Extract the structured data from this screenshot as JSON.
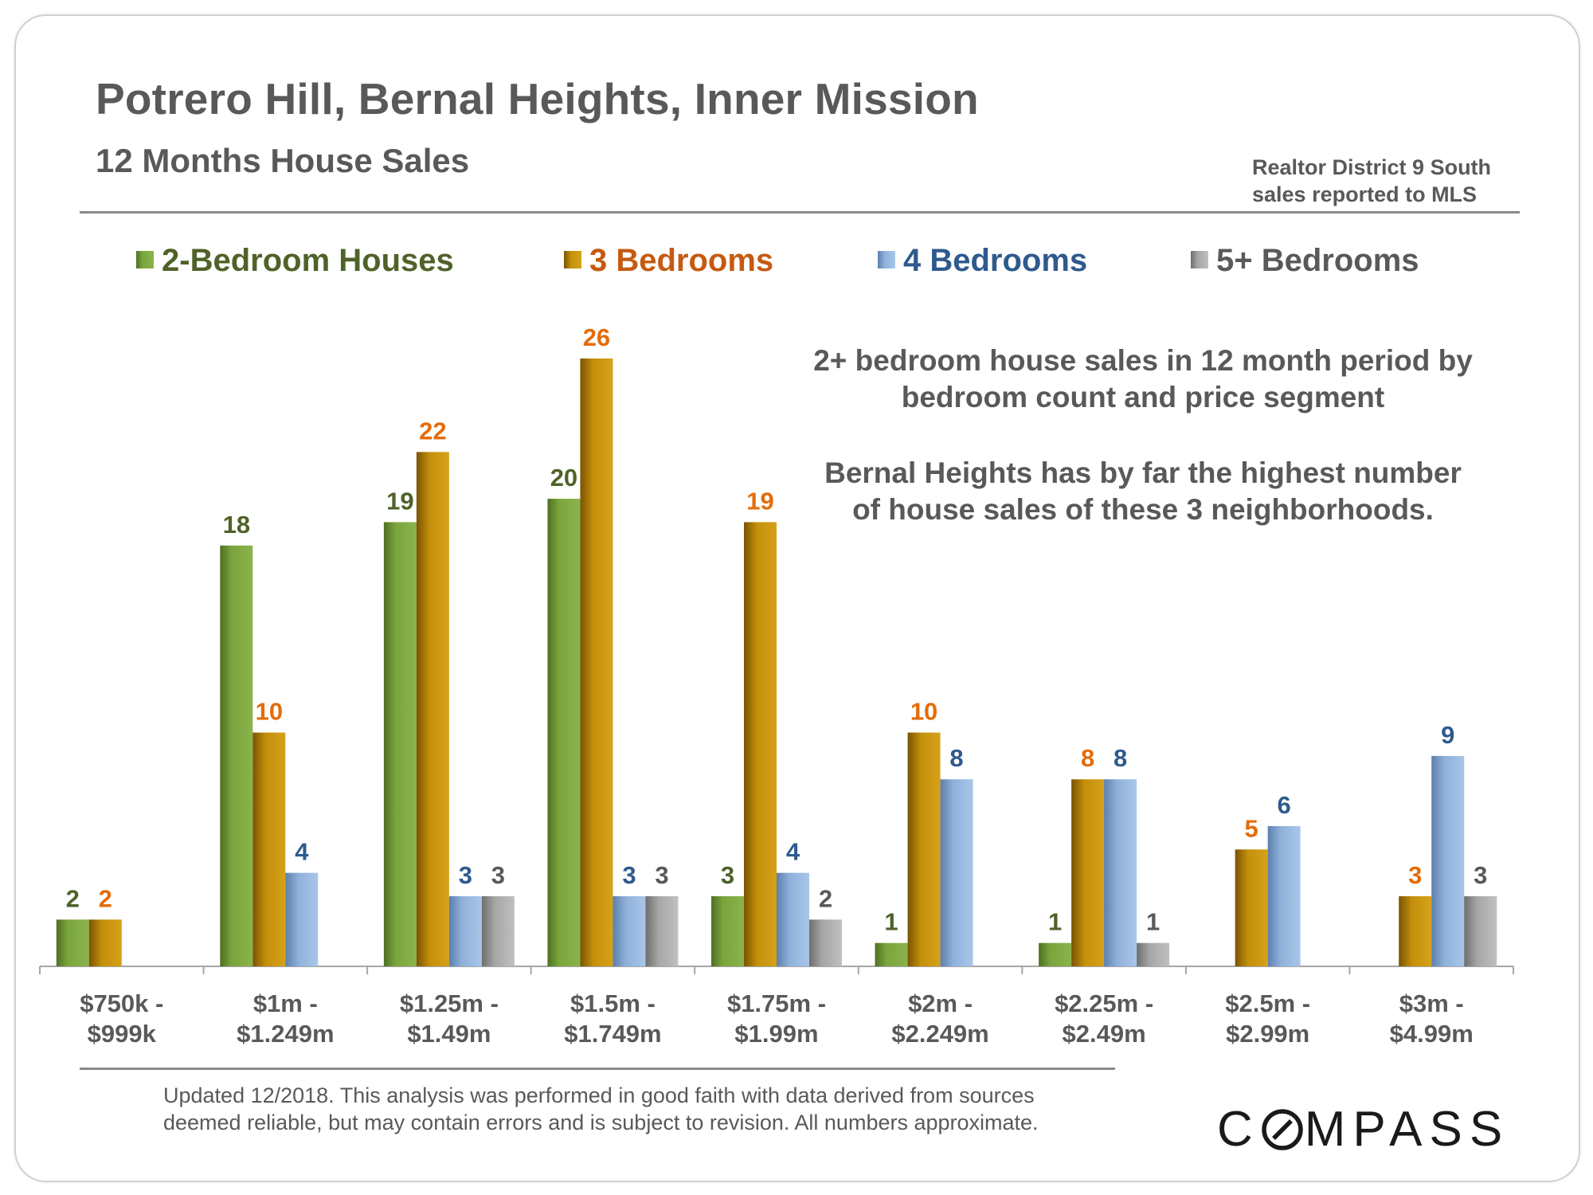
{
  "header": {
    "title": "Potrero Hill, Bernal Heights, Inner Mission",
    "subtitle": "12 Months House Sales",
    "source_line1": "Realtor District 9 South",
    "source_line2": "sales reported to MLS"
  },
  "footer": {
    "line1": "Updated 12/2018. This analysis was performed in good faith with data derived from sources",
    "line2": "deemed reliable, but may contain errors and is subject to revision. All numbers approximate.",
    "logo_left": "C",
    "logo_right": "MPASS"
  },
  "colors": {
    "axis": "#a6a6a6",
    "text": "#595959"
  },
  "chart_data": {
    "type": "bar",
    "title": "12 Months House Sales",
    "xlabel": "",
    "ylabel": "",
    "ylim": [
      0,
      26
    ],
    "grid": false,
    "legend_position": "top",
    "categories": [
      [
        "$750k -",
        "$999k"
      ],
      [
        "$1m -",
        "$1.249m"
      ],
      [
        "$1.25m -",
        "$1.49m"
      ],
      [
        "$1.5m -",
        "$1.749m"
      ],
      [
        "$1.75m -",
        "$1.99m"
      ],
      [
        "$2m -",
        "$2.249m"
      ],
      [
        "$2.25m -",
        "$2.49m"
      ],
      [
        "$2.5m -",
        "$2.99m"
      ],
      [
        "$3m -",
        "$4.99m"
      ]
    ],
    "series": [
      {
        "name": "2-Bedroom Houses",
        "color": "#77a03a",
        "label_color": "#4f6228",
        "values": [
          2,
          18,
          19,
          20,
          3,
          1,
          1,
          null,
          null
        ]
      },
      {
        "name": "3 Bedrooms",
        "color": "#c08a08",
        "label_color": "#e46c0a",
        "legend_color": "#c55a11",
        "values": [
          2,
          10,
          22,
          26,
          19,
          10,
          8,
          5,
          3
        ]
      },
      {
        "name": "4 Bedrooms",
        "color": "#8eb0d8",
        "label_color": "#2e5a8e",
        "values": [
          null,
          4,
          3,
          3,
          4,
          8,
          8,
          6,
          9
        ]
      },
      {
        "name": "5+ Bedrooms",
        "color": "#a8a8a8",
        "label_color": "#595959",
        "values": [
          null,
          null,
          3,
          3,
          2,
          null,
          1,
          null,
          3
        ]
      }
    ],
    "annotations": [
      "2+ bedroom house sales in 12 month period by",
      "bedroom count and price segment",
      "Bernal Heights has by far the highest number",
      "of house sales of these 3 neighborhoods."
    ]
  }
}
